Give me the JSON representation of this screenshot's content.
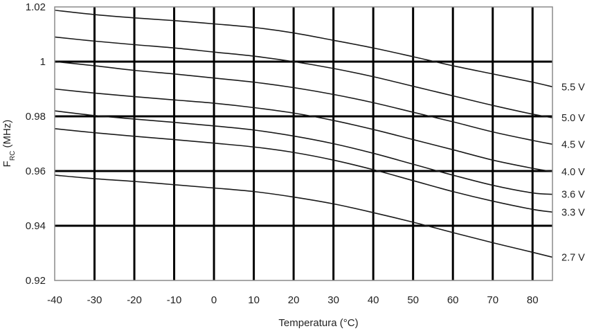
{
  "chart_data": {
    "type": "line",
    "title": "",
    "xlabel": "Temperatura (°C)",
    "ylabel": {
      "main": "F",
      "subscript": "RC",
      "unit": " (MHz)"
    },
    "xlim": [
      -40,
      85
    ],
    "ylim": [
      0.92,
      1.02
    ],
    "xticks": [
      -40,
      -30,
      -20,
      -10,
      0,
      10,
      20,
      30,
      40,
      50,
      60,
      70,
      80
    ],
    "xtick_labels": [
      "-40",
      "-30",
      "-20",
      "-10",
      "0",
      "10",
      "20",
      "30",
      "40",
      "50",
      "60",
      "70",
      "80"
    ],
    "yticks": [
      0.92,
      0.94,
      0.96,
      0.98,
      1.0,
      1.02
    ],
    "ytick_labels": [
      "0.92",
      "0.94",
      "0.96",
      "0.98",
      "1",
      "1.02"
    ],
    "grid": {
      "vertical": true,
      "horizontal_major": [
        0.94,
        0.96,
        0.98,
        1.0
      ],
      "color": "#000000"
    },
    "legend": "labels at right end of each line",
    "line_color": "#1a1a1a",
    "x": [
      -40,
      -30,
      -20,
      -10,
      0,
      10,
      20,
      30,
      40,
      50,
      60,
      70,
      80,
      85
    ],
    "series": [
      {
        "name": "5.5 V",
        "values": [
          1.0188,
          1.0172,
          1.016,
          1.015,
          1.0138,
          1.0125,
          1.0105,
          1.0078,
          1.005,
          1.0018,
          0.9985,
          0.9955,
          0.9925,
          0.9908
        ]
      },
      {
        "name": "5.0 V",
        "values": [
          1.009,
          1.0075,
          1.0062,
          1.005,
          1.0035,
          1.002,
          1.0,
          0.9975,
          0.9945,
          0.991,
          0.9875,
          0.984,
          0.9808,
          0.9795
        ]
      },
      {
        "name": "4.5 V",
        "values": [
          1.0,
          0.9985,
          0.9968,
          0.9955,
          0.994,
          0.9925,
          0.9905,
          0.988,
          0.985,
          0.9815,
          0.978,
          0.9743,
          0.9712,
          0.9698
        ]
      },
      {
        "name": "4.0 V",
        "values": [
          0.99,
          0.9885,
          0.9872,
          0.986,
          0.9848,
          0.9832,
          0.9812,
          0.9785,
          0.9752,
          0.9715,
          0.9678,
          0.964,
          0.961,
          0.9598
        ]
      },
      {
        "name": "3.6 V",
        "values": [
          0.982,
          0.9803,
          0.979,
          0.9778,
          0.9765,
          0.975,
          0.9728,
          0.97,
          0.9665,
          0.9625,
          0.9585,
          0.9548,
          0.952,
          0.9515
        ]
      },
      {
        "name": "3.3 V",
        "values": [
          0.9755,
          0.974,
          0.9727,
          0.9715,
          0.9702,
          0.9688,
          0.9668,
          0.964,
          0.9605,
          0.9565,
          0.9525,
          0.949,
          0.946,
          0.945
        ]
      },
      {
        "name": "2.7 V",
        "values": [
          0.9585,
          0.9572,
          0.9562,
          0.955,
          0.9538,
          0.9525,
          0.9505,
          0.948,
          0.9448,
          0.9413,
          0.9375,
          0.9338,
          0.9303,
          0.9285
        ]
      }
    ]
  }
}
